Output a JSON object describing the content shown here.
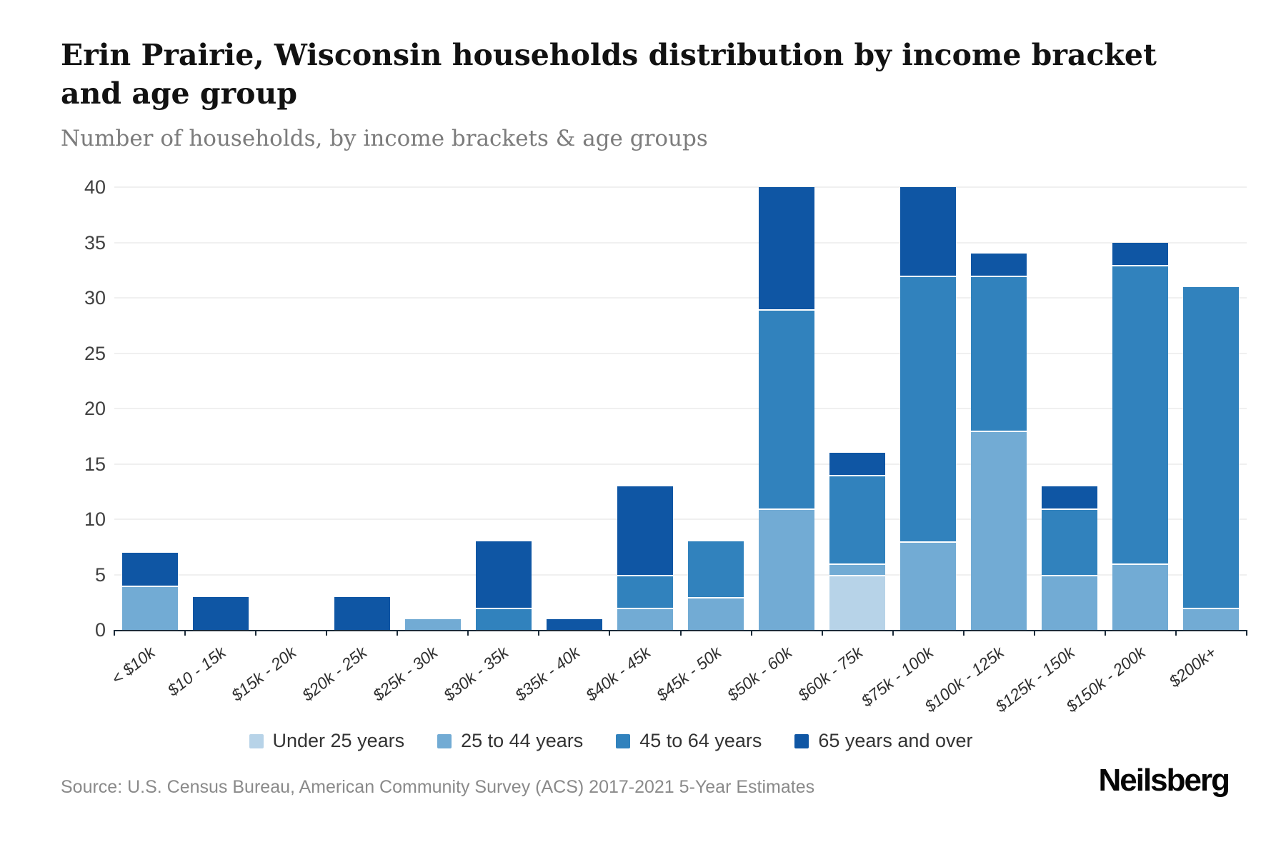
{
  "page": {
    "title_line1": "Erin Prairie, Wisconsin households distribution by income bracket",
    "title_line2": "and age group",
    "subtitle": "Number of households, by income brackets & age groups",
    "source": "Source: U.S. Census Bureau, American Community Survey (ACS) 2017-2021 5-Year Estimates",
    "brand": "Neilsberg"
  },
  "chart_data": {
    "type": "bar",
    "stacked": true,
    "title": "Erin Prairie, Wisconsin households distribution by income bracket and age group",
    "subtitle": "Number of households, by income brackets & age groups",
    "xlabel": "",
    "ylabel": "",
    "ylim": [
      0,
      40
    ],
    "yticks": [
      0,
      5,
      10,
      15,
      20,
      25,
      30,
      35,
      40
    ],
    "grid": true,
    "legend_position": "bottom",
    "categories": [
      "< $10k",
      "$10 - 15k",
      "$15k - 20k",
      "$20k - 25k",
      "$25k - 30k",
      "$30k - 35k",
      "$35k - 40k",
      "$40k - 45k",
      "$45k - 50k",
      "$50k - 60k",
      "$60k - 75k",
      "$75k - 100k",
      "$100k - 125k",
      "$125k - 150k",
      "$150k - 200k",
      "$200k+"
    ],
    "series": [
      {
        "name": "Under 25 years",
        "color": "#b7d3e8",
        "values": [
          0,
          0,
          0,
          0,
          0,
          0,
          0,
          0,
          0,
          0,
          5,
          0,
          0,
          0,
          0,
          0
        ]
      },
      {
        "name": "25 to 44 years",
        "color": "#72abd4",
        "values": [
          4,
          0,
          0,
          0,
          1,
          0,
          0,
          2,
          3,
          11,
          1,
          8,
          18,
          5,
          6,
          2
        ]
      },
      {
        "name": "45 to 64 years",
        "color": "#3182bd",
        "values": [
          0,
          0,
          0,
          0,
          0,
          2,
          0,
          3,
          5,
          18,
          8,
          24,
          14,
          6,
          27,
          29
        ]
      },
      {
        "name": "65 years and over",
        "color": "#0f56a4",
        "values": [
          3,
          3,
          0,
          3,
          0,
          6,
          1,
          8,
          0,
          11,
          2,
          8,
          2,
          2,
          2,
          0
        ]
      }
    ],
    "totals": [
      7,
      3,
      0,
      3,
      1,
      8,
      1,
      13,
      8,
      40,
      16,
      40,
      34,
      13,
      35,
      31
    ]
  }
}
